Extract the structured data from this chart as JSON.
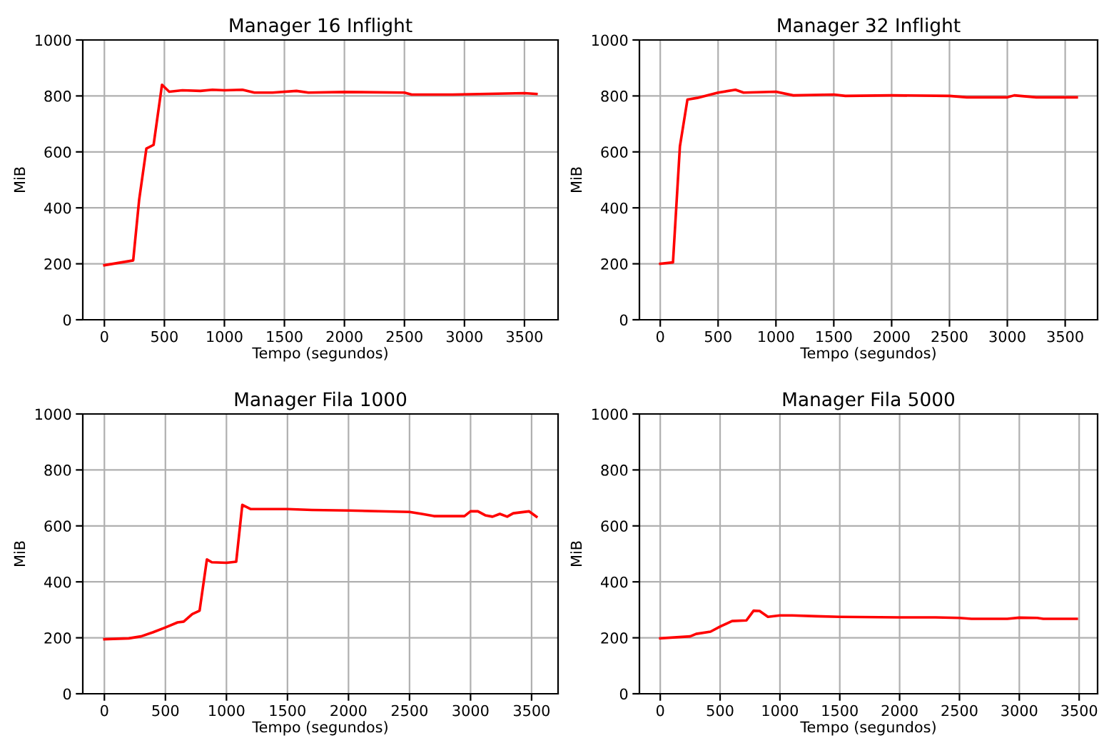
{
  "chart_data": [
    {
      "type": "line",
      "title": "Manager 16 Inflight",
      "xlabel": "Tempo (segundos)",
      "ylabel": "MiB",
      "xlim": [
        -180,
        3780
      ],
      "ylim": [
        0,
        1000
      ],
      "xticks": [
        0,
        500,
        1000,
        1500,
        2000,
        2500,
        3000,
        3500
      ],
      "yticks": [
        0,
        200,
        400,
        600,
        800,
        1000
      ],
      "grid": true,
      "series": [
        {
          "color": "#ff0000",
          "x": [
            0,
            240,
            290,
            350,
            410,
            480,
            540,
            650,
            800,
            900,
            1000,
            1150,
            1250,
            1400,
            1600,
            1700,
            2000,
            2500,
            2560,
            2900,
            3500,
            3600
          ],
          "values": [
            195,
            212,
            430,
            612,
            625,
            840,
            815,
            820,
            818,
            822,
            820,
            822,
            812,
            812,
            818,
            812,
            814,
            812,
            805,
            805,
            810,
            807
          ]
        }
      ]
    },
    {
      "type": "line",
      "title": "Manager 32 Inflight",
      "xlabel": "Tempo (segundos)",
      "ylabel": "MiB",
      "xlim": [
        -180,
        3780
      ],
      "ylim": [
        0,
        1000
      ],
      "xticks": [
        0,
        500,
        1000,
        1500,
        2000,
        2500,
        3000,
        3500
      ],
      "yticks": [
        0,
        200,
        400,
        600,
        800,
        1000
      ],
      "grid": true,
      "series": [
        {
          "color": "#ff0000",
          "x": [
            0,
            110,
            170,
            235,
            320,
            500,
            650,
            720,
            1000,
            1150,
            1500,
            1600,
            2000,
            2500,
            2650,
            3000,
            3060,
            3250,
            3600
          ],
          "values": [
            200,
            205,
            620,
            787,
            793,
            812,
            822,
            812,
            815,
            802,
            805,
            800,
            802,
            800,
            795,
            795,
            802,
            795,
            795
          ]
        }
      ]
    },
    {
      "type": "line",
      "title": "Manager Fila 1000",
      "xlabel": "Tempo (segundos)",
      "ylabel": "MiB",
      "xlim": [
        -177,
        3717
      ],
      "ylim": [
        0,
        1000
      ],
      "xticks": [
        0,
        500,
        1000,
        1500,
        2000,
        2500,
        3000,
        3500
      ],
      "yticks": [
        0,
        200,
        400,
        600,
        800,
        1000
      ],
      "grid": true,
      "series": [
        {
          "color": "#ff0000",
          "x": [
            0,
            200,
            300,
            400,
            500,
            600,
            650,
            720,
            780,
            840,
            880,
            1000,
            1080,
            1130,
            1200,
            1500,
            1700,
            2000,
            2500,
            2600,
            2700,
            2950,
            3000,
            3060,
            3120,
            3180,
            3240,
            3300,
            3350,
            3480,
            3540
          ],
          "values": [
            195,
            198,
            205,
            220,
            237,
            255,
            258,
            285,
            297,
            480,
            470,
            468,
            472,
            675,
            660,
            660,
            657,
            655,
            650,
            643,
            635,
            635,
            652,
            652,
            638,
            633,
            643,
            633,
            645,
            652,
            633
          ]
        }
      ]
    },
    {
      "type": "line",
      "title": "Manager Fila 5000",
      "xlabel": "Tempo (segundos)",
      "ylabel": "MiB",
      "xlim": [
        -174,
        3654
      ],
      "ylim": [
        0,
        1000
      ],
      "xticks": [
        0,
        500,
        1000,
        1500,
        2000,
        2500,
        3000,
        3500
      ],
      "yticks": [
        0,
        200,
        400,
        600,
        800,
        1000
      ],
      "grid": true,
      "series": [
        {
          "color": "#ff0000",
          "x": [
            0,
            250,
            300,
            420,
            500,
            600,
            720,
            780,
            830,
            900,
            1000,
            1100,
            1300,
            1500,
            2000,
            2300,
            2500,
            2600,
            2900,
            3000,
            3150,
            3200,
            3480
          ],
          "values": [
            198,
            205,
            214,
            222,
            240,
            260,
            262,
            297,
            296,
            275,
            280,
            280,
            277,
            275,
            273,
            273,
            271,
            268,
            268,
            272,
            271,
            268,
            268
          ]
        }
      ]
    }
  ]
}
